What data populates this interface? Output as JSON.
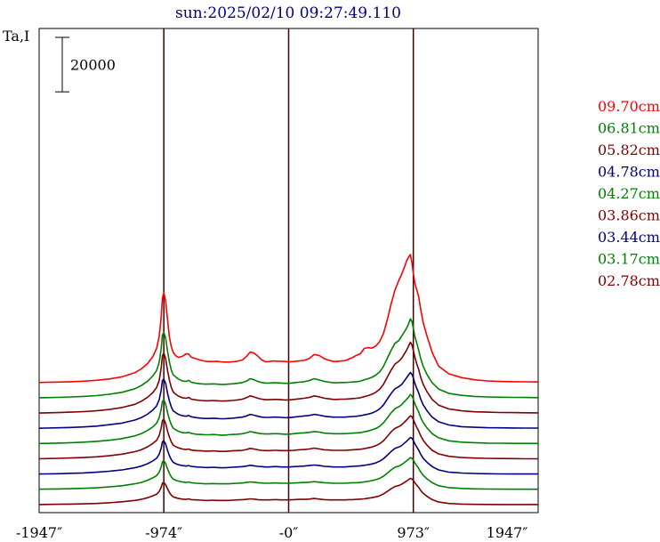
{
  "chart_data": {
    "type": "line",
    "title": "sun:2025/02/10 09:27:49.110",
    "ylabel": "Ta,I",
    "scale_bar_label": "20000",
    "x_tick_labels": [
      "-1947″",
      "-974″",
      "-0″",
      "973″",
      "1947″"
    ],
    "xlim": [
      -1947,
      1947
    ],
    "vlines_x": [
      -974,
      0,
      973
    ],
    "scale_bar_value": 20000,
    "stack_offset": 5600,
    "x": [
      -1947,
      -1900,
      -1800,
      -1700,
      -1600,
      -1500,
      -1400,
      -1300,
      -1200,
      -1150,
      -1100,
      -1060,
      -1030,
      -1010,
      -995,
      -985,
      -974,
      -960,
      -945,
      -930,
      -915,
      -900,
      -880,
      -860,
      -830,
      -800,
      -780,
      -760,
      -720,
      -680,
      -650,
      -620,
      -590,
      -560,
      -530,
      -500,
      -470,
      -440,
      -400,
      -360,
      -330,
      -300,
      -270,
      -240,
      -210,
      -180,
      -150,
      -120,
      -90,
      -60,
      -30,
      0,
      40,
      80,
      120,
      160,
      200,
      240,
      280,
      320,
      350,
      380,
      410,
      440,
      470,
      500,
      530,
      560,
      590,
      620,
      650,
      680,
      710,
      740,
      770,
      800,
      830,
      860,
      880,
      900,
      920,
      935,
      950,
      962,
      973,
      985,
      1000,
      1015,
      1030,
      1050,
      1080,
      1120,
      1170,
      1250,
      1350,
      1450,
      1550,
      1650,
      1750,
      1850,
      1947
    ],
    "series": [
      {
        "name": "09.70cm",
        "color": "#ff0000",
        "values": [
          2000,
          2050,
          2150,
          2300,
          2500,
          2800,
          3300,
          4100,
          5600,
          7000,
          9000,
          11500,
          14500,
          19000,
          26000,
          33000,
          35000,
          32000,
          25000,
          18500,
          15000,
          13000,
          11800,
          11200,
          11600,
          12500,
          12500,
          11300,
          10700,
          10100,
          9800,
          9700,
          9700,
          9800,
          9600,
          9500,
          9500,
          9600,
          9800,
          10300,
          11500,
          13200,
          12800,
          11700,
          10300,
          9600,
          9700,
          9900,
          9800,
          9800,
          9700,
          9600,
          9700,
          9900,
          10100,
          10800,
          12300,
          11900,
          10700,
          10100,
          9700,
          9700,
          9900,
          10000,
          10600,
          11200,
          12000,
          12600,
          14500,
          14800,
          14600,
          15400,
          17000,
          20000,
          25000,
          31000,
          36000,
          39500,
          41500,
          44000,
          46500,
          48000,
          49000,
          46000,
          42000,
          38500,
          36000,
          33500,
          29000,
          24000,
          19000,
          13000,
          8000,
          5200,
          3800,
          3000,
          2600,
          2400,
          2300,
          2250,
          2200
        ]
      },
      {
        "name": "06.81cm",
        "color": "#008000",
        "values": [
          2000,
          2050,
          2150,
          2300,
          2500,
          2800,
          3300,
          4000,
          5300,
          6500,
          8100,
          10000,
          12000,
          15000,
          20000,
          25000,
          26000,
          24000,
          19000,
          15000,
          12000,
          10400,
          9600,
          8900,
          8200,
          8000,
          8400,
          7700,
          7300,
          7100,
          7000,
          7000,
          7100,
          7000,
          6900,
          6900,
          7000,
          7100,
          7300,
          7600,
          8100,
          9000,
          8600,
          8000,
          7600,
          7400,
          7400,
          7500,
          7500,
          7400,
          7300,
          7300,
          7500,
          7700,
          7900,
          8300,
          9000,
          8500,
          8000,
          7700,
          7500,
          7500,
          7600,
          7600,
          7700,
          7800,
          7900,
          8100,
          8600,
          9000,
          9500,
          10300,
          11500,
          13500,
          16500,
          19500,
          22000,
          23000,
          24500,
          26000,
          27500,
          29000,
          31000,
          30000,
          27500,
          24500,
          22000,
          19500,
          16500,
          13500,
          10500,
          7500,
          5200,
          3600,
          2900,
          2500,
          2300,
          2200,
          2150,
          2100,
          2050
        ]
      },
      {
        "name": "05.82cm",
        "color": "#800000",
        "values": [
          2000,
          2050,
          2150,
          2300,
          2500,
          2800,
          3300,
          4000,
          5200,
          6300,
          7800,
          9500,
          11400,
          14000,
          18500,
          23000,
          24000,
          22000,
          17500,
          14000,
          11300,
          9700,
          8900,
          8200,
          7600,
          7400,
          7700,
          7100,
          6800,
          6600,
          6500,
          6500,
          6600,
          6500,
          6400,
          6400,
          6500,
          6600,
          6800,
          7100,
          7600,
          8300,
          7900,
          7400,
          7100,
          6900,
          6900,
          7000,
          7000,
          6900,
          6800,
          6800,
          7000,
          7200,
          7400,
          7700,
          8300,
          7900,
          7400,
          7200,
          7000,
          7000,
          7100,
          7100,
          7200,
          7300,
          7400,
          7600,
          8000,
          8400,
          8900,
          9600,
          10700,
          12500,
          15200,
          17800,
          20000,
          21000,
          22000,
          23500,
          25000,
          26500,
          28000,
          27000,
          25000,
          22500,
          20000,
          18000,
          15200,
          12500,
          9800,
          7000,
          4900,
          3500,
          2800,
          2450,
          2300,
          2200,
          2150,
          2100,
          2050
        ]
      },
      {
        "name": "04.78cm",
        "color": "#000080",
        "values": [
          2000,
          2050,
          2150,
          2300,
          2500,
          2800,
          3300,
          3900,
          5000,
          5900,
          7200,
          8700,
          10200,
          12500,
          16000,
          19500,
          20000,
          18500,
          14800,
          12000,
          9700,
          8400,
          7700,
          7100,
          6600,
          6400,
          6700,
          6200,
          5900,
          5700,
          5600,
          5600,
          5700,
          5600,
          5500,
          5500,
          5600,
          5700,
          5900,
          6100,
          6500,
          7100,
          6800,
          6400,
          6100,
          6000,
          6000,
          6100,
          6100,
          6000,
          5900,
          5900,
          6100,
          6300,
          6500,
          6700,
          7100,
          6800,
          6400,
          6200,
          6100,
          6100,
          6100,
          6100,
          6200,
          6300,
          6400,
          6600,
          6900,
          7200,
          7600,
          8200,
          9100,
          10600,
          12700,
          14800,
          16500,
          17300,
          18000,
          19200,
          20500,
          21500,
          22500,
          21800,
          20500,
          18500,
          16600,
          15000,
          12800,
          10600,
          8400,
          6100,
          4400,
          3200,
          2600,
          2350,
          2200,
          2150,
          2100,
          2050,
          2050
        ]
      },
      {
        "name": "04.27cm",
        "color": "#008000",
        "values": [
          2000,
          2050,
          2150,
          2300,
          2500,
          2800,
          3200,
          3800,
          4800,
          5600,
          6800,
          8100,
          9500,
          11500,
          14500,
          17500,
          18000,
          16500,
          13300,
          10800,
          8800,
          7600,
          7000,
          6500,
          6000,
          5900,
          6100,
          5700,
          5400,
          5300,
          5200,
          5200,
          5300,
          5200,
          5100,
          5100,
          5200,
          5300,
          5400,
          5600,
          5900,
          6400,
          6100,
          5800,
          5600,
          5500,
          5500,
          5600,
          5600,
          5500,
          5400,
          5400,
          5600,
          5800,
          5900,
          6100,
          6400,
          6200,
          5800,
          5700,
          5600,
          5600,
          5600,
          5600,
          5700,
          5800,
          5900,
          6000,
          6300,
          6600,
          7000,
          7500,
          8300,
          9600,
          11400,
          13300,
          14800,
          15500,
          16200,
          17200,
          18200,
          19000,
          20000,
          19500,
          18300,
          16700,
          15000,
          13600,
          11600,
          9700,
          7700,
          5600,
          4100,
          3000,
          2500,
          2300,
          2150,
          2100,
          2050,
          2050,
          2000
        ]
      },
      {
        "name": "03.86cm",
        "color": "#800000",
        "values": [
          2000,
          2050,
          2150,
          2300,
          2450,
          2700,
          3100,
          3700,
          4600,
          5300,
          6400,
          7600,
          8800,
          10600,
          13300,
          16000,
          16500,
          15000,
          12100,
          9900,
          8100,
          7000,
          6400,
          6000,
          5600,
          5400,
          5600,
          5200,
          5000,
          4900,
          4800,
          4800,
          4900,
          4800,
          4700,
          4700,
          4800,
          4900,
          5000,
          5100,
          5400,
          5800,
          5600,
          5300,
          5100,
          5000,
          5000,
          5100,
          5100,
          5000,
          5000,
          5000,
          5100,
          5300,
          5400,
          5600,
          5900,
          5600,
          5300,
          5200,
          5100,
          5100,
          5100,
          5100,
          5200,
          5300,
          5400,
          5500,
          5700,
          6000,
          6300,
          6800,
          7500,
          8600,
          10200,
          11900,
          13200,
          13800,
          14400,
          15300,
          16200,
          17000,
          17800,
          17400,
          16400,
          15000,
          13500,
          12200,
          10500,
          8800,
          7000,
          5100,
          3800,
          2900,
          2450,
          2250,
          2150,
          2100,
          2050,
          2000,
          2000
        ]
      },
      {
        "name": "03.44cm",
        "color": "#000080",
        "values": [
          2000,
          2050,
          2100,
          2250,
          2400,
          2650,
          3000,
          3500,
          4300,
          4900,
          5800,
          6800,
          7800,
          9300,
          11500,
          13800,
          14200,
          13000,
          10600,
          8700,
          7200,
          6300,
          5800,
          5400,
          5100,
          4900,
          5100,
          4800,
          4600,
          4500,
          4400,
          4400,
          4500,
          4400,
          4300,
          4300,
          4400,
          4500,
          4600,
          4700,
          4900,
          5200,
          5000,
          4800,
          4700,
          4600,
          4600,
          4700,
          4700,
          4600,
          4600,
          4600,
          4700,
          4800,
          4900,
          5100,
          5300,
          5100,
          4800,
          4700,
          4600,
          4600,
          4600,
          4600,
          4700,
          4800,
          4900,
          5000,
          5200,
          5400,
          5700,
          6100,
          6700,
          7600,
          8900,
          10300,
          11400,
          11900,
          12400,
          13200,
          14000,
          14700,
          15400,
          15100,
          14300,
          13100,
          11900,
          10800,
          9300,
          7800,
          6300,
          4700,
          3500,
          2700,
          2350,
          2200,
          2100,
          2050,
          2000,
          2000,
          2000
        ]
      },
      {
        "name": "03.17cm",
        "color": "#008000",
        "values": [
          2000,
          2050,
          2100,
          2200,
          2350,
          2550,
          2850,
          3300,
          4000,
          4500,
          5300,
          6200,
          7000,
          8300,
          10200,
          12100,
          12500,
          11500,
          9400,
          7800,
          6500,
          5700,
          5300,
          5000,
          4700,
          4500,
          4700,
          4400,
          4200,
          4100,
          4000,
          4000,
          4100,
          4000,
          4000,
          4000,
          4000,
          4100,
          4200,
          4300,
          4500,
          4700,
          4600,
          4400,
          4300,
          4200,
          4200,
          4300,
          4300,
          4200,
          4200,
          4200,
          4300,
          4400,
          4500,
          4600,
          4800,
          4600,
          4400,
          4300,
          4200,
          4200,
          4200,
          4200,
          4300,
          4400,
          4400,
          4500,
          4700,
          4900,
          5200,
          5500,
          6000,
          6800,
          7900,
          9100,
          10100,
          10500,
          11000,
          11700,
          12400,
          13000,
          13600,
          13400,
          12700,
          11700,
          10600,
          9700,
          8400,
          7100,
          5800,
          4400,
          3300,
          2600,
          2300,
          2150,
          2080,
          2040,
          2000,
          2000,
          2000
        ]
      },
      {
        "name": "02.78cm",
        "color": "#800000",
        "values": [
          2000,
          2040,
          2100,
          2150,
          2250,
          2400,
          2650,
          3000,
          3500,
          3900,
          4500,
          5200,
          5800,
          6800,
          8300,
          9800,
          10100,
          9300,
          7700,
          6400,
          5400,
          4800,
          4500,
          4200,
          4000,
          3900,
          4100,
          3800,
          3700,
          3600,
          3500,
          3500,
          3600,
          3500,
          3500,
          3500,
          3500,
          3600,
          3700,
          3800,
          3900,
          4100,
          4000,
          3800,
          3700,
          3700,
          3700,
          3800,
          3800,
          3700,
          3700,
          3700,
          3800,
          3900,
          3900,
          4000,
          4200,
          4000,
          3800,
          3700,
          3700,
          3700,
          3700,
          3700,
          3800,
          3800,
          3900,
          4000,
          4100,
          4300,
          4500,
          4800,
          5200,
          5900,
          6800,
          7800,
          8600,
          9000,
          9400,
          10000,
          10600,
          11100,
          11600,
          11400,
          10800,
          10000,
          9100,
          8300,
          7200,
          6100,
          5000,
          3800,
          2900,
          2400,
          2150,
          2050,
          2020,
          2000,
          2000,
          2000,
          2000
        ]
      }
    ]
  }
}
